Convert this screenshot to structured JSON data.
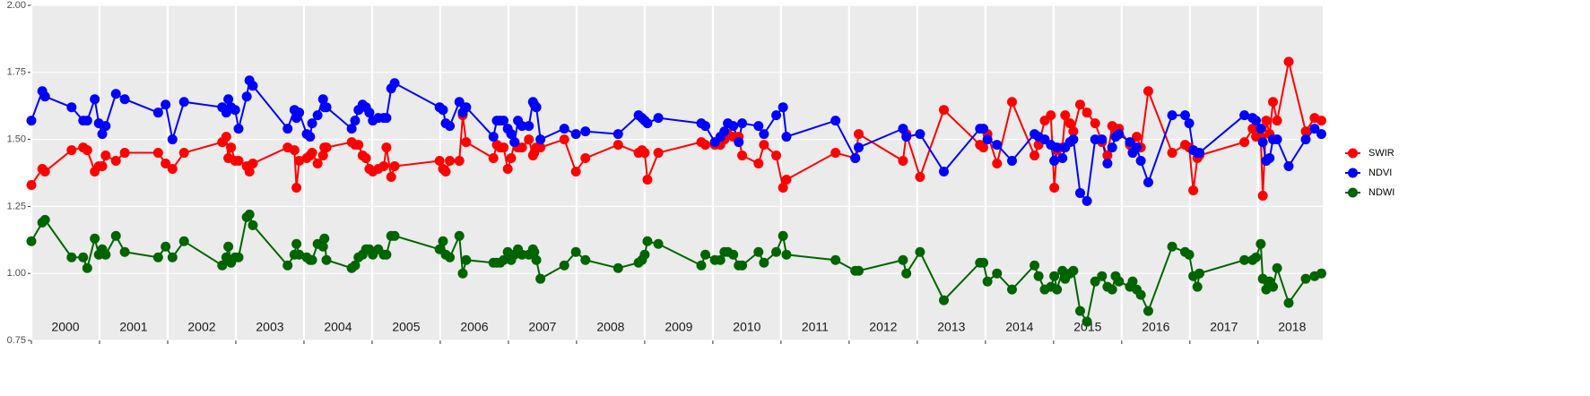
{
  "chart_data": {
    "type": "line",
    "x": [
      2000.0,
      2000.16,
      2000.2,
      2000.59,
      2000.76,
      2000.82,
      2000.93,
      2000.99,
      2001.04,
      2001.09,
      2001.24,
      2001.37,
      2001.86,
      2001.97,
      2002.07,
      2002.24,
      2002.8,
      2002.86,
      2002.89,
      2002.93,
      2002.99,
      2003.04,
      2003.16,
      2003.2,
      2003.25,
      2003.76,
      2003.86,
      2003.89,
      2003.93,
      2004.04,
      2004.09,
      2004.12,
      2004.2,
      2004.28,
      2004.3,
      2004.33,
      2004.7,
      2004.75,
      2004.8,
      2004.86,
      2004.91,
      2004.96,
      2005.01,
      2005.09,
      2005.17,
      2005.21,
      2005.28,
      2005.33,
      2005.99,
      2006.04,
      2006.08,
      2006.14,
      2006.28,
      2006.33,
      2006.38,
      2006.78,
      2006.83,
      2006.88,
      2006.93,
      2006.99,
      2007.04,
      2007.09,
      2007.14,
      2007.2,
      2007.3,
      2007.36,
      2007.38,
      2007.41,
      2007.47,
      2007.82,
      2007.99,
      2008.13,
      2008.61,
      2008.91,
      2008.96,
      2009.0,
      2009.04,
      2009.2,
      2009.83,
      2009.89,
      2010.03,
      2010.11,
      2010.17,
      2010.22,
      2010.3,
      2010.38,
      2010.43,
      2010.67,
      2010.75,
      2010.93,
      2011.03,
      2011.08,
      2011.8,
      2012.09,
      2012.14,
      2012.79,
      2012.84,
      2013.04,
      2013.39,
      2013.92,
      2013.97,
      2014.03,
      2014.17,
      2014.39,
      2014.72,
      2014.78,
      2014.87,
      2014.96,
      2015.01,
      2015.05,
      2015.13,
      2015.17,
      2015.24,
      2015.29,
      2015.39,
      2015.49,
      2015.61,
      2015.71,
      2015.79,
      2015.86,
      2015.91,
      2015.96,
      2016.12,
      2016.16,
      2016.22,
      2016.28,
      2016.39,
      2016.74,
      2016.93,
      2016.99,
      2017.05,
      2017.11,
      2017.14,
      2017.8,
      2017.92,
      2017.97,
      2018.04,
      2018.07,
      2018.12,
      2018.17,
      2018.22,
      2018.28,
      2018.45,
      2018.7,
      2018.83,
      2018.93
    ],
    "series": [
      {
        "name": "SWIR",
        "color": "#ff0000",
        "values": [
          1.33,
          1.39,
          1.38,
          1.46,
          1.47,
          1.46,
          1.38,
          1.4,
          1.4,
          1.44,
          1.42,
          1.45,
          1.45,
          1.41,
          1.39,
          1.45,
          1.49,
          1.51,
          1.43,
          1.47,
          1.42,
          1.42,
          1.4,
          1.38,
          1.41,
          1.47,
          1.46,
          1.32,
          1.42,
          1.43,
          1.44,
          1.45,
          1.41,
          1.44,
          1.47,
          1.47,
          1.49,
          1.48,
          1.48,
          1.44,
          1.43,
          1.39,
          1.38,
          1.39,
          1.4,
          1.47,
          1.36,
          1.4,
          1.42,
          1.39,
          1.38,
          1.42,
          1.42,
          1.59,
          1.49,
          1.43,
          1.48,
          1.47,
          1.47,
          1.39,
          1.43,
          1.49,
          1.47,
          1.47,
          1.5,
          1.44,
          1.45,
          1.47,
          1.47,
          1.5,
          1.38,
          1.43,
          1.48,
          1.45,
          1.46,
          1.45,
          1.35,
          1.45,
          1.49,
          1.48,
          1.48,
          1.48,
          1.5,
          1.52,
          1.51,
          1.51,
          1.44,
          1.41,
          1.48,
          1.44,
          1.32,
          1.35,
          1.45,
          1.43,
          1.52,
          1.42,
          1.52,
          1.36,
          1.61,
          1.48,
          1.47,
          1.52,
          1.41,
          1.64,
          1.44,
          1.48,
          1.57,
          1.59,
          1.32,
          1.46,
          1.47,
          1.59,
          1.56,
          1.53,
          1.63,
          1.6,
          1.56,
          1.49,
          1.44,
          1.55,
          1.54,
          1.54,
          1.48,
          1.47,
          1.51,
          1.47,
          1.68,
          1.45,
          1.48,
          1.47,
          1.31,
          1.43,
          1.44,
          1.49,
          1.54,
          1.51,
          1.51,
          1.29,
          1.57,
          1.52,
          1.64,
          1.57,
          1.79,
          1.53,
          1.58,
          1.57
        ]
      },
      {
        "name": "NDVI",
        "color": "#0000ff",
        "values": [
          1.57,
          1.68,
          1.66,
          1.62,
          1.57,
          1.57,
          1.65,
          1.56,
          1.52,
          1.55,
          1.67,
          1.65,
          1.6,
          1.63,
          1.5,
          1.64,
          1.62,
          1.6,
          1.65,
          1.62,
          1.61,
          1.54,
          1.66,
          1.72,
          1.7,
          1.54,
          1.61,
          1.58,
          1.6,
          1.52,
          1.51,
          1.56,
          1.59,
          1.65,
          1.62,
          1.62,
          1.54,
          1.57,
          1.61,
          1.63,
          1.62,
          1.6,
          1.57,
          1.58,
          1.58,
          1.58,
          1.69,
          1.71,
          1.62,
          1.61,
          1.56,
          1.55,
          1.64,
          1.6,
          1.62,
          1.51,
          1.57,
          1.57,
          1.57,
          1.54,
          1.52,
          1.49,
          1.57,
          1.55,
          1.55,
          1.64,
          1.63,
          1.62,
          1.5,
          1.54,
          1.52,
          1.53,
          1.52,
          1.59,
          1.58,
          1.57,
          1.56,
          1.58,
          1.56,
          1.55,
          1.49,
          1.51,
          1.53,
          1.56,
          1.55,
          1.49,
          1.56,
          1.55,
          1.52,
          1.59,
          1.62,
          1.51,
          1.57,
          1.43,
          1.47,
          1.54,
          1.51,
          1.52,
          1.38,
          1.54,
          1.54,
          1.5,
          1.48,
          1.42,
          1.52,
          1.51,
          1.5,
          1.48,
          1.42,
          1.47,
          1.43,
          1.47,
          1.49,
          1.5,
          1.3,
          1.27,
          1.5,
          1.5,
          1.41,
          1.47,
          1.51,
          1.52,
          1.49,
          1.45,
          1.47,
          1.42,
          1.34,
          1.59,
          1.59,
          1.56,
          1.46,
          1.45,
          1.45,
          1.59,
          1.58,
          1.57,
          1.54,
          1.49,
          1.42,
          1.43,
          1.5,
          1.5,
          1.4,
          1.5,
          1.54,
          1.52
        ]
      },
      {
        "name": "NDWI",
        "color": "#006400",
        "values": [
          1.12,
          1.19,
          1.2,
          1.06,
          1.06,
          1.02,
          1.13,
          1.07,
          1.09,
          1.07,
          1.14,
          1.08,
          1.06,
          1.1,
          1.06,
          1.12,
          1.03,
          1.06,
          1.1,
          1.04,
          1.06,
          1.06,
          1.21,
          1.22,
          1.18,
          1.03,
          1.07,
          1.11,
          1.07,
          1.06,
          1.05,
          1.05,
          1.11,
          1.1,
          1.13,
          1.05,
          1.02,
          1.03,
          1.06,
          1.07,
          1.09,
          1.09,
          1.07,
          1.09,
          1.07,
          1.07,
          1.14,
          1.14,
          1.09,
          1.12,
          1.07,
          1.06,
          1.14,
          1.0,
          1.05,
          1.04,
          1.04,
          1.04,
          1.05,
          1.08,
          1.05,
          1.07,
          1.09,
          1.07,
          1.07,
          1.09,
          1.08,
          1.05,
          0.98,
          1.03,
          1.08,
          1.05,
          1.02,
          1.04,
          1.05,
          1.07,
          1.12,
          1.11,
          1.03,
          1.07,
          1.05,
          1.05,
          1.08,
          1.08,
          1.07,
          1.03,
          1.03,
          1.08,
          1.04,
          1.08,
          1.14,
          1.07,
          1.05,
          1.01,
          1.01,
          1.05,
          1.0,
          1.08,
          0.9,
          1.04,
          1.04,
          0.97,
          1.0,
          0.94,
          1.03,
          0.99,
          0.94,
          0.95,
          0.99,
          0.94,
          1.01,
          0.98,
          1.0,
          1.01,
          0.86,
          0.82,
          0.97,
          0.99,
          0.95,
          0.94,
          0.99,
          0.97,
          0.95,
          0.97,
          0.94,
          0.92,
          0.86,
          1.1,
          1.08,
          1.07,
          0.99,
          0.95,
          1.0,
          1.05,
          1.05,
          1.06,
          1.11,
          0.98,
          0.94,
          0.97,
          0.95,
          1.02,
          0.89,
          0.98,
          0.99,
          1.0
        ]
      }
    ],
    "xlim": [
      2000,
      2018.95
    ],
    "xticks": [
      2000,
      2001,
      2002,
      2003,
      2004,
      2005,
      2006,
      2007,
      2008,
      2009,
      2010,
      2011,
      2012,
      2013,
      2014,
      2015,
      2016,
      2017,
      2018
    ],
    "ylim": [
      0.75,
      2.0
    ],
    "yticks": [
      0.75,
      {
        "value": 1,
        "label": "1.00"
      },
      1.25,
      {
        "value": 1.5,
        "label": "1.50"
      },
      1.75,
      {
        "value": 2,
        "label": "2.00"
      }
    ],
    "grid": true,
    "legend": "right"
  }
}
